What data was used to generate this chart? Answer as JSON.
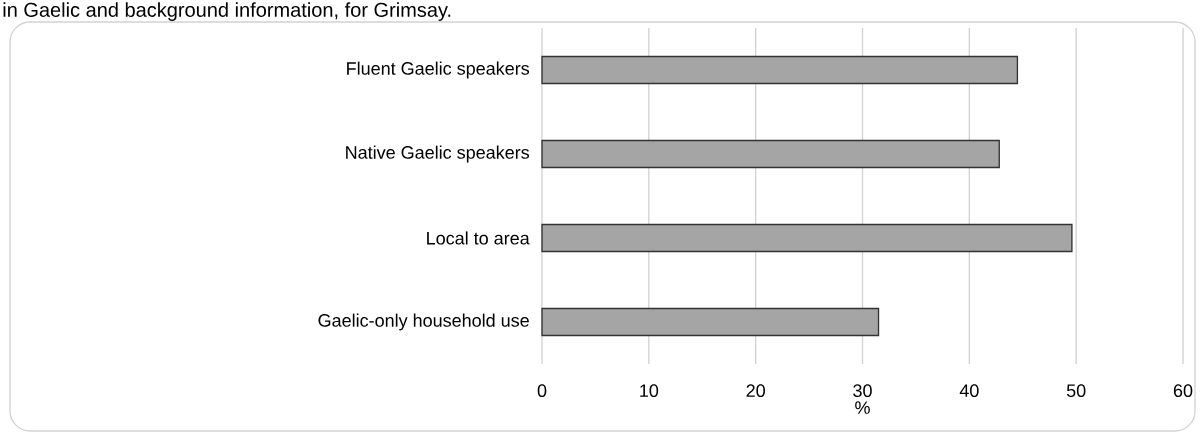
{
  "chart_data": {
    "type": "bar",
    "orientation": "horizontal",
    "title": "in Gaelic and background information, for Grimsay.",
    "categories": [
      "Fluent Gaelic speakers",
      "Native Gaelic speakers",
      "Local to area",
      "Gaelic-only household use"
    ],
    "values": [
      44.5,
      42.8,
      49.6,
      31.5
    ],
    "color": "#a5a5a5",
    "xlim": [
      0,
      60
    ],
    "xticks": [
      0,
      10,
      20,
      30,
      40,
      50,
      60
    ],
    "xlabel": "%",
    "grid": "x"
  }
}
